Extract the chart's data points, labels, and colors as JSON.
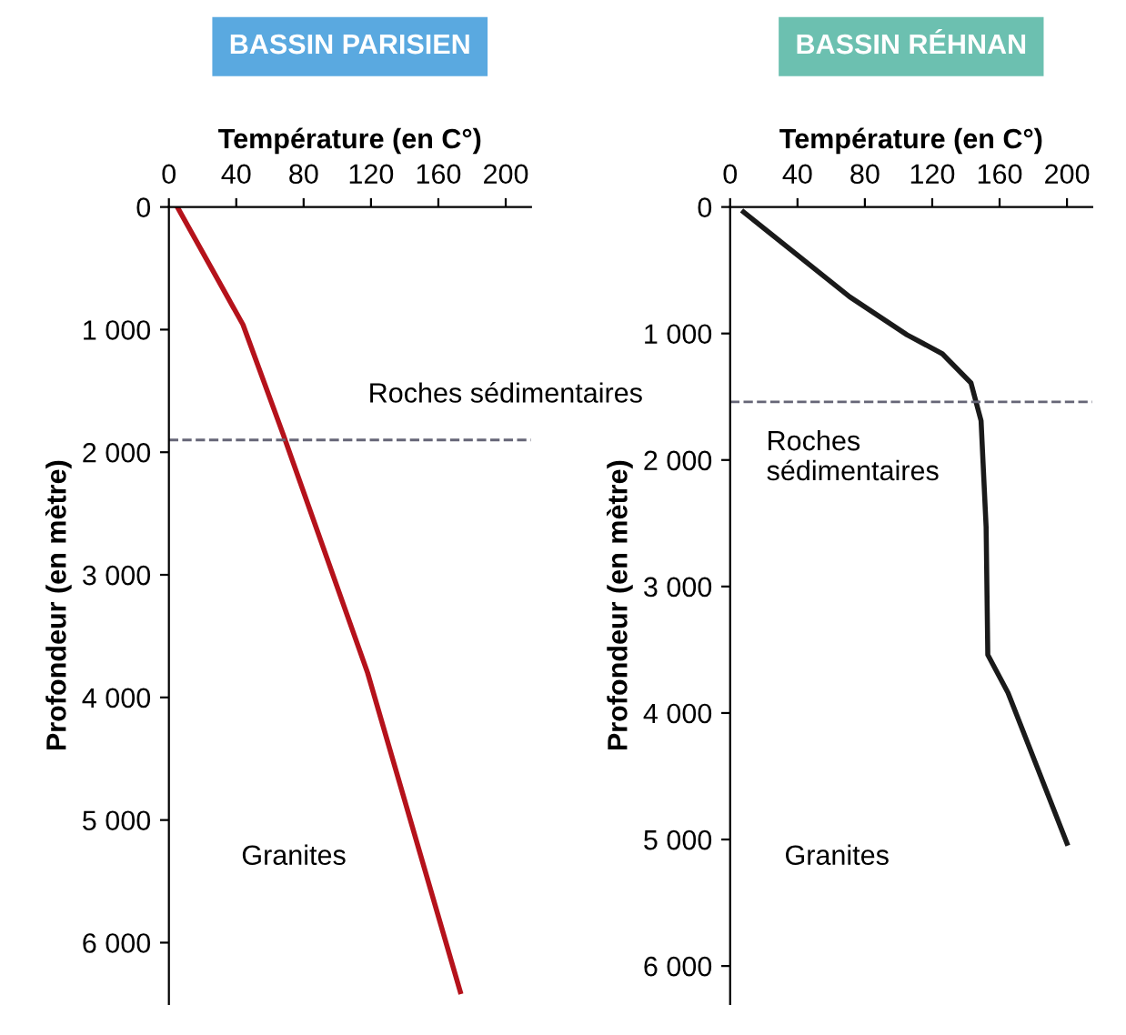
{
  "chart_data": [
    {
      "type": "line",
      "title": "BASSIN PARISIEN",
      "xlabel": "Température (en C°)",
      "ylabel": "Profondeur (en mètre)",
      "series": [
        {
          "color": "#b5121b",
          "x": [
            5,
            44,
            68,
            118,
            173
          ],
          "values": [
            0,
            960,
            1860,
            3800,
            6400
          ]
        }
      ],
      "xlim": [
        0,
        215
      ],
      "ylim": [
        6500,
        0
      ],
      "xticks": [
        0,
        40,
        80,
        120,
        160,
        200
      ],
      "yticks": [
        0,
        {
          "value": 1000,
          "label": "1 000"
        },
        {
          "value": 2000,
          "label": "2 000"
        },
        {
          "value": 3000,
          "label": "3 000"
        },
        {
          "value": 4000,
          "label": "4 000"
        },
        {
          "value": 5000,
          "label": "5 000"
        },
        {
          "value": 6000,
          "label": "6 000"
        }
      ],
      "ref_lines": [
        {
          "axis": "y",
          "value": 1900,
          "color": "#666677",
          "line_style": "dashed"
        }
      ],
      "annotations": [
        "Roches sédimentaires",
        "Granites"
      ],
      "grid": false,
      "marker": "none",
      "line_style": "solid"
    },
    {
      "type": "line",
      "title": "BASSIN RÉHNAN",
      "xlabel": "Température (en C°)",
      "ylabel": "Profondeur (en mètre)",
      "series": [
        {
          "color": "#1a1a1a",
          "x": [
            8,
            71,
            105,
            126,
            143,
            149,
            152,
            153,
            165,
            200
          ],
          "values": [
            40,
            710,
            1010,
            1160,
            1390,
            1690,
            2530,
            3540,
            3840,
            5030
          ]
        }
      ],
      "xlim": [
        0,
        215
      ],
      "ylim": [
        6300,
        0
      ],
      "xticks": [
        0,
        40,
        80,
        120,
        160,
        200
      ],
      "yticks": [
        0,
        {
          "value": 1000,
          "label": "1 000"
        },
        {
          "value": 2000,
          "label": "2 000"
        },
        {
          "value": 3000,
          "label": "3 000"
        },
        {
          "value": 4000,
          "label": "4 000"
        },
        {
          "value": 5000,
          "label": "5 000"
        },
        {
          "value": 6000,
          "label": "6 000"
        }
      ],
      "ref_lines": [
        {
          "axis": "y",
          "value": 1540,
          "color": "#666677",
          "line_style": "dashed"
        }
      ],
      "annotations": [
        "Roches\nsédimentaires",
        "Granites"
      ],
      "grid": false,
      "marker": "none",
      "line_style": "solid"
    }
  ]
}
